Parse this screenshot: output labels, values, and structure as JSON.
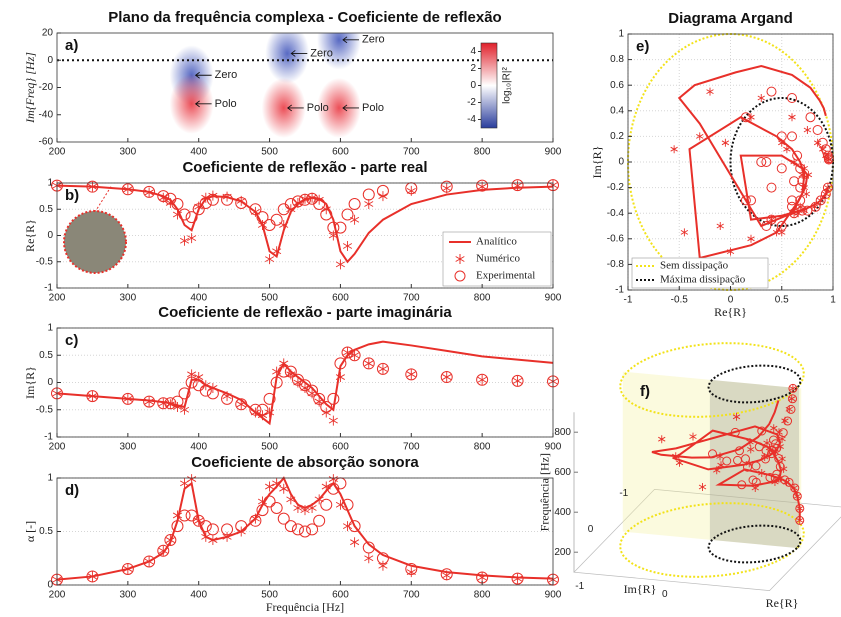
{
  "chart_data": [
    {
      "type": "pole-zero",
      "title": "Plano da frequência complexa - Coeficiente de reflexão",
      "panel_label": "a)",
      "ylabel": "Im{Freq} [Hz]",
      "xlim": [
        200,
        900
      ],
      "xticks": [
        200,
        300,
        400,
        500,
        600,
        700,
        800,
        900
      ],
      "ylim": [
        -60,
        20
      ],
      "yticks": [
        -60,
        -40,
        -20,
        0,
        20
      ],
      "points": [
        {
          "x": 390,
          "y": -11,
          "label": "Zero",
          "color": "#3a4fb8"
        },
        {
          "x": 525,
          "y": 5,
          "label": "Zero",
          "color": "#3a4fb8"
        },
        {
          "x": 598,
          "y": 15,
          "label": "Zero",
          "color": "#3a4fb8"
        },
        {
          "x": 390,
          "y": -32,
          "label": "Polo",
          "color": "#e8303a"
        },
        {
          "x": 520,
          "y": -35,
          "label": "Polo",
          "color": "#e8303a"
        },
        {
          "x": 598,
          "y": -35,
          "label": "Polo",
          "color": "#e8303a"
        }
      ],
      "colorbar": {
        "label": "log₁₀|R|²",
        "clim": [
          -5,
          5
        ],
        "ticks": [
          -4,
          -2,
          0,
          2,
          4
        ],
        "colors": [
          "#2a3d9c",
          "#ffffff",
          "#e0202a"
        ]
      }
    },
    {
      "type": "line",
      "title": "Coeficiente de reflexão - parte real",
      "panel_label": "b)",
      "ylabel": "Re{R}",
      "xlim": [
        200,
        900
      ],
      "xticks": [
        200,
        300,
        400,
        500,
        600,
        700,
        800,
        900
      ],
      "ylim": [
        -1,
        1
      ],
      "yticks": [
        -1,
        -0.5,
        0,
        0.5,
        1
      ],
      "grid": true,
      "legend": "lower right",
      "x": [
        200,
        250,
        300,
        330,
        350,
        360,
        370,
        380,
        390,
        400,
        410,
        420,
        440,
        460,
        480,
        490,
        500,
        510,
        520,
        530,
        540,
        550,
        560,
        570,
        580,
        590,
        600,
        610,
        620,
        640,
        660,
        700,
        750,
        800,
        850,
        900
      ],
      "series": [
        {
          "name": "Analítico",
          "color": "#e8302a",
          "marker": "line",
          "values": [
            0.95,
            0.93,
            0.88,
            0.83,
            0.75,
            0.68,
            0.5,
            0.2,
            0.1,
            0.5,
            0.7,
            0.75,
            0.73,
            0.65,
            0.45,
            0.2,
            -0.3,
            -0.4,
            0.1,
            0.45,
            0.6,
            0.68,
            0.72,
            0.7,
            0.6,
            0.3,
            -0.3,
            -0.5,
            -0.35,
            0.05,
            0.3,
            0.6,
            0.78,
            0.87,
            0.91,
            0.93
          ]
        },
        {
          "name": "Numérico",
          "color": "#e8302a",
          "marker": "asterisk",
          "values": [
            0.95,
            0.93,
            0.88,
            0.82,
            0.72,
            0.62,
            0.4,
            -0.1,
            -0.05,
            0.55,
            0.72,
            0.76,
            0.74,
            0.66,
            0.45,
            0.2,
            -0.45,
            -0.3,
            0.2,
            0.5,
            0.62,
            0.7,
            0.72,
            0.68,
            0.5,
            0,
            -0.55,
            -0.2,
            0.3,
            0.6,
            0.75,
            0.85,
            0.9,
            0.93,
            0.95,
            0.96
          ]
        },
        {
          "name": "Experimental",
          "color": "#e8302a",
          "marker": "circle",
          "values": [
            0.95,
            0.93,
            0.88,
            0.83,
            0.75,
            0.7,
            0.6,
            0.4,
            0.35,
            0.5,
            0.62,
            0.68,
            0.68,
            0.62,
            0.5,
            0.35,
            0.2,
            0.3,
            0.5,
            0.6,
            0.65,
            0.68,
            0.7,
            0.6,
            0.4,
            0.15,
            0.15,
            0.4,
            0.6,
            0.78,
            0.85,
            0.9,
            0.93,
            0.95,
            0.96,
            0.96
          ]
        }
      ]
    },
    {
      "type": "line",
      "title": "Coeficiente de reflexão - parte imaginária",
      "panel_label": "c)",
      "ylabel": "Im{R}",
      "xlim": [
        200,
        900
      ],
      "xticks": [
        200,
        300,
        400,
        500,
        600,
        700,
        800,
        900
      ],
      "ylim": [
        -1,
        1
      ],
      "yticks": [
        -1,
        -0.5,
        0,
        0.5,
        1
      ],
      "grid": true,
      "x": [
        200,
        250,
        300,
        330,
        350,
        360,
        370,
        380,
        390,
        400,
        410,
        420,
        440,
        460,
        480,
        490,
        500,
        510,
        520,
        530,
        540,
        550,
        560,
        570,
        580,
        590,
        600,
        610,
        620,
        640,
        660,
        700,
        750,
        800,
        850,
        900
      ],
      "series": [
        {
          "color": "#e8302a",
          "marker": "line",
          "values": [
            -0.2,
            -0.25,
            -0.3,
            -0.33,
            -0.36,
            -0.38,
            -0.42,
            -0.45,
            0.05,
            0.05,
            -0.05,
            -0.1,
            -0.2,
            -0.32,
            -0.55,
            -0.65,
            -0.75,
            0.1,
            0.35,
            0.2,
            0.1,
            0,
            -0.1,
            -0.25,
            -0.4,
            -0.5,
            0.3,
            0.5,
            0.6,
            0.7,
            0.75,
            0.68,
            0.58,
            0.48,
            0.42,
            0.36
          ]
        },
        {
          "color": "#e8302a",
          "marker": "asterisk",
          "values": [
            -0.2,
            -0.25,
            -0.3,
            -0.35,
            -0.38,
            -0.4,
            -0.45,
            -0.5,
            0.15,
            0.1,
            -0.05,
            -0.1,
            -0.25,
            -0.4,
            -0.55,
            -0.6,
            -0.55,
            0.2,
            0.35,
            0.15,
            0,
            -0.1,
            -0.2,
            -0.35,
            -0.55,
            -0.7,
            0.1,
            0.55,
            0.5,
            0.35,
            0.25,
            0.15,
            0.1,
            0.05,
            0.03,
            0.02
          ]
        },
        {
          "color": "#e8302a",
          "marker": "circle",
          "values": [
            -0.2,
            -0.25,
            -0.3,
            -0.35,
            -0.38,
            -0.38,
            -0.35,
            -0.2,
            0,
            -0.05,
            -0.15,
            -0.2,
            -0.3,
            -0.4,
            -0.5,
            -0.5,
            -0.3,
            0,
            0.2,
            0.2,
            0.05,
            -0.05,
            -0.15,
            -0.3,
            -0.45,
            -0.3,
            0.35,
            0.55,
            0.5,
            0.35,
            0.25,
            0.15,
            0.1,
            0.05,
            0.03,
            0.02
          ]
        }
      ]
    },
    {
      "type": "line",
      "title": "Coeficiente de absorção sonora",
      "panel_label": "d)",
      "ylabel": "α [-]",
      "xlabel": "Frequência [Hz]",
      "xlim": [
        200,
        900
      ],
      "xticks": [
        200,
        300,
        400,
        500,
        600,
        700,
        800,
        900
      ],
      "ylim": [
        0,
        1
      ],
      "yticks": [
        0,
        0.5,
        1
      ],
      "grid": true,
      "x": [
        200,
        250,
        300,
        330,
        350,
        360,
        370,
        380,
        390,
        400,
        410,
        420,
        440,
        460,
        480,
        490,
        500,
        510,
        520,
        530,
        540,
        550,
        560,
        570,
        580,
        590,
        600,
        610,
        620,
        640,
        660,
        700,
        750,
        800,
        850,
        900
      ],
      "series": [
        {
          "color": "#e8302a",
          "marker": "line",
          "values": [
            0.05,
            0.08,
            0.15,
            0.22,
            0.3,
            0.4,
            0.6,
            0.9,
            0.95,
            0.6,
            0.45,
            0.42,
            0.45,
            0.5,
            0.62,
            0.75,
            0.85,
            0.92,
            1,
            0.85,
            0.75,
            0.72,
            0.75,
            0.8,
            0.88,
            0.95,
            0.85,
            0.7,
            0.55,
            0.38,
            0.28,
            0.18,
            0.12,
            0.09,
            0.07,
            0.06
          ]
        },
        {
          "color": "#e8302a",
          "marker": "asterisk",
          "values": [
            0.05,
            0.08,
            0.15,
            0.22,
            0.32,
            0.42,
            0.65,
            0.95,
            0.99,
            0.6,
            0.45,
            0.42,
            0.45,
            0.5,
            0.62,
            0.78,
            0.92,
            0.95,
            0.9,
            0.8,
            0.72,
            0.7,
            0.72,
            0.8,
            0.92,
            0.99,
            0.75,
            0.55,
            0.4,
            0.25,
            0.18,
            0.12,
            0.09,
            0.07,
            0.06,
            0.05
          ]
        },
        {
          "color": "#e8302a",
          "marker": "circle",
          "values": [
            0.05,
            0.08,
            0.15,
            0.22,
            0.32,
            0.42,
            0.55,
            0.65,
            0.65,
            0.6,
            0.55,
            0.52,
            0.52,
            0.55,
            0.6,
            0.7,
            0.78,
            0.72,
            0.62,
            0.55,
            0.52,
            0.5,
            0.52,
            0.6,
            0.75,
            0.9,
            0.95,
            0.75,
            0.55,
            0.35,
            0.25,
            0.15,
            0.1,
            0.07,
            0.06,
            0.05
          ]
        }
      ]
    },
    {
      "type": "argand",
      "title": "Diagrama Argand",
      "panel_label": "e)",
      "xlabel": "Re{R}",
      "ylabel": "Im{R}",
      "xlim": [
        -1,
        1
      ],
      "xticks": [
        -1,
        -0.5,
        0,
        0.5,
        1
      ],
      "ylim": [
        -1,
        1
      ],
      "yticks": [
        -1,
        -0.8,
        -0.6,
        -0.4,
        -0.2,
        0,
        0.2,
        0.4,
        0.6,
        0.8,
        1
      ],
      "grid": true,
      "legend": "lower left",
      "circles": [
        {
          "name": "Sem dissipação",
          "color": "#f2e21a",
          "center": [
            0,
            0
          ],
          "radius": 1
        },
        {
          "name": "Máxima dissipação",
          "color": "#111111",
          "center": [
            0.5,
            0
          ],
          "radius": 0.5
        }
      ]
    },
    {
      "type": "argand3d",
      "panel_label": "f)",
      "zlabel": "Frequência [Hz]",
      "xlabel": "Re{R}",
      "ylabel": "Im{R}",
      "zlim": [
        100,
        900
      ],
      "zticks": [
        200,
        400,
        600,
        800
      ],
      "xlim": [
        -1,
        1
      ],
      "xticks": [
        -1,
        0
      ],
      "ylim": [
        -1,
        1
      ],
      "yticks": [
        -1,
        0
      ]
    }
  ]
}
